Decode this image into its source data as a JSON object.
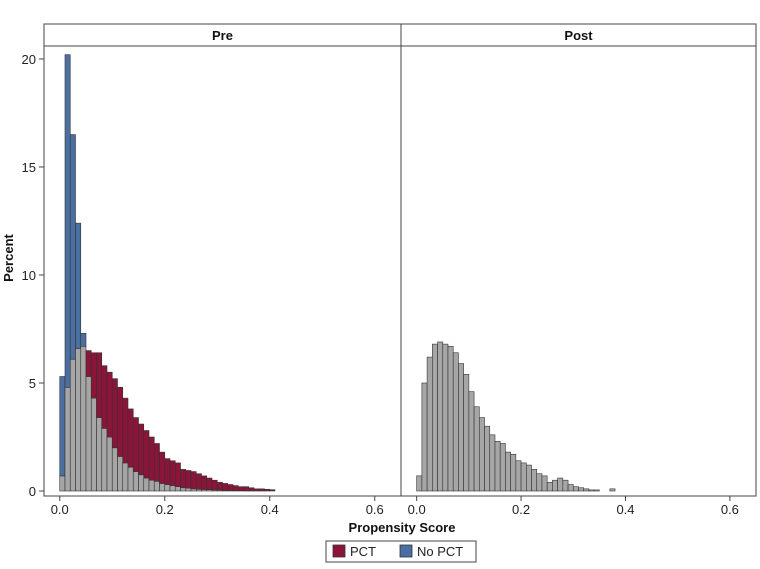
{
  "chart_data": {
    "type": "bar",
    "subtype": "overlaid-histogram-panels",
    "xlabel": "Propensity Score",
    "ylabel": "Percent",
    "xlim": [
      -0.03,
      0.65
    ],
    "ylim": [
      0,
      20.6
    ],
    "bin_width": 0.01,
    "x_ticks": [
      0.0,
      0.2,
      0.4,
      0.6
    ],
    "x_tick_labels": [
      "0.0",
      "0.2",
      "0.4",
      "0.6"
    ],
    "y_ticks": [
      0,
      5,
      10,
      15,
      20
    ],
    "y_tick_labels": [
      "0",
      "5",
      "10",
      "15",
      "20"
    ],
    "overlap_color": "#a6a6a6",
    "legend_position": "bottom-center",
    "legend": [
      {
        "label": "PCT",
        "color": "#8b1538"
      },
      {
        "label": "No PCT",
        "color": "#4a6fa0"
      }
    ],
    "panels": [
      {
        "title": "Pre",
        "bin_starts": [
          0.0,
          0.01,
          0.02,
          0.03,
          0.04,
          0.05,
          0.06,
          0.07,
          0.08,
          0.09,
          0.1,
          0.11,
          0.12,
          0.13,
          0.14,
          0.15,
          0.16,
          0.17,
          0.18,
          0.19,
          0.2,
          0.21,
          0.22,
          0.23,
          0.24,
          0.25,
          0.26,
          0.27,
          0.28,
          0.29,
          0.3,
          0.31,
          0.32,
          0.33,
          0.34,
          0.35,
          0.36,
          0.37,
          0.38,
          0.39,
          0.4
        ],
        "series": [
          {
            "name": "No PCT",
            "values": [
              5.3,
              20.2,
              16.5,
              12.4,
              7.3,
              5.3,
              4.3,
              3.4,
              2.9,
              2.5,
              2.0,
              1.6,
              1.3,
              1.1,
              0.9,
              0.75,
              0.6,
              0.5,
              0.45,
              0.35,
              0.3,
              0.25,
              0.2,
              0.15,
              0.13,
              0.1,
              0.08,
              0.07,
              0.06,
              0.05,
              0.04,
              0.03,
              0.03,
              0.02,
              0.02,
              0.01,
              0.01,
              0.01,
              0.01,
              0.0,
              0.0
            ]
          },
          {
            "name": "PCT",
            "values": [
              0.7,
              4.8,
              6.1,
              6.6,
              6.7,
              6.5,
              6.4,
              6.4,
              5.8,
              5.5,
              5.2,
              4.8,
              4.3,
              3.8,
              3.4,
              3.1,
              2.8,
              2.5,
              2.2,
              1.8,
              1.5,
              1.4,
              1.3,
              1.0,
              0.95,
              0.9,
              0.8,
              0.7,
              0.6,
              0.5,
              0.4,
              0.35,
              0.3,
              0.25,
              0.2,
              0.2,
              0.15,
              0.1,
              0.1,
              0.08,
              0.06
            ]
          }
        ]
      },
      {
        "title": "Post",
        "bin_starts": [
          0.0,
          0.01,
          0.02,
          0.03,
          0.04,
          0.05,
          0.06,
          0.07,
          0.08,
          0.09,
          0.1,
          0.11,
          0.12,
          0.13,
          0.14,
          0.15,
          0.16,
          0.17,
          0.18,
          0.19,
          0.2,
          0.21,
          0.22,
          0.23,
          0.24,
          0.25,
          0.26,
          0.27,
          0.28,
          0.29,
          0.3,
          0.31,
          0.32,
          0.33,
          0.34,
          0.35,
          0.36,
          0.37
        ],
        "series": [
          {
            "name": "No PCT",
            "values": [
              0.7,
              5.0,
              6.2,
              6.8,
              6.9,
              6.8,
              6.7,
              6.4,
              5.9,
              5.4,
              4.6,
              3.9,
              3.4,
              3.0,
              2.6,
              2.3,
              2.2,
              1.8,
              1.7,
              1.4,
              1.3,
              1.2,
              1.0,
              0.8,
              0.7,
              0.4,
              0.5,
              0.6,
              0.5,
              0.3,
              0.2,
              0.15,
              0.1,
              0.05,
              0.05,
              0.0,
              0.0,
              0.1
            ]
          },
          {
            "name": "PCT",
            "values": [
              0.7,
              5.0,
              6.2,
              6.8,
              6.9,
              6.8,
              6.7,
              6.4,
              5.9,
              5.4,
              4.6,
              3.9,
              3.4,
              3.0,
              2.6,
              2.3,
              2.2,
              1.8,
              1.7,
              1.4,
              1.3,
              1.2,
              1.0,
              0.8,
              0.7,
              0.4,
              0.5,
              0.6,
              0.5,
              0.3,
              0.2,
              0.15,
              0.1,
              0.05,
              0.05,
              0.0,
              0.0,
              0.1
            ]
          }
        ]
      }
    ]
  }
}
